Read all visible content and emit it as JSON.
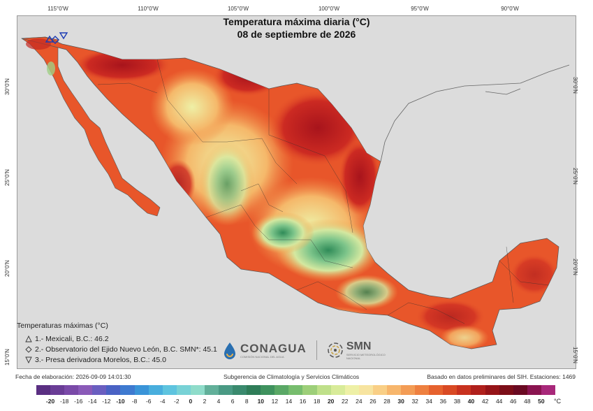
{
  "map": {
    "title": "Temperatura máxima diaria (°C)",
    "subtitle": "08 de septiembre de 2026",
    "lon_labels": [
      "115°0'W",
      "110°0'W",
      "105°0'W",
      "100°0'W",
      "95°0'W",
      "90°0'W"
    ],
    "lat_labels": [
      "30°0'N",
      "25°0'N",
      "20°0'N",
      "15°0'N"
    ],
    "colors": {
      "land_base": "#e8562a",
      "hot": "#b8141c",
      "mild": "#f5a24a",
      "cool": "#d4e8a0",
      "cooler": "#7cc48a",
      "coolest": "#2f8b58",
      "background": "#dcdcdc",
      "water": "#dcdcdc"
    }
  },
  "legend": {
    "title": "Temperaturas máximas (°C)",
    "items": [
      {
        "marker": "triangle-up",
        "text": "1.- Mexicali, B.C.: 46.2"
      },
      {
        "marker": "diamond",
        "text": "2.- Observatorio del Ejido Nuevo León, B.C. SMN*: 45.1"
      },
      {
        "marker": "triangle-down",
        "text": "3.- Presa derivadora Morelos, B.C.: 45.0"
      }
    ]
  },
  "logos": {
    "conagua": "CONAGUA",
    "conagua_sub": "COMISIÓN NACIONAL DEL AGUA",
    "smn": "SMN",
    "smn_sub": "SERVICIO METEOROLÓGICO NACIONAL"
  },
  "footer": {
    "left": "Fecha de elaboración: 2026-09-09 14:01:30",
    "center": "Subgerencia de Climatología y Servicios Climáticos",
    "right": "Basado en datos preliminares del SIH. Estaciones: 1469"
  },
  "colorbar": {
    "unit": "°C",
    "ticks": [
      -20,
      -18,
      -16,
      -14,
      -12,
      -10,
      -8,
      -6,
      -4,
      -2,
      0,
      2,
      4,
      6,
      8,
      10,
      12,
      14,
      16,
      18,
      20,
      22,
      24,
      26,
      28,
      30,
      32,
      34,
      36,
      38,
      40,
      42,
      44,
      46,
      48,
      50
    ],
    "major_ticks": [
      -20,
      -10,
      0,
      10,
      20,
      30,
      40,
      50
    ],
    "colors": [
      "#5a2f82",
      "#6a3d96",
      "#7a4aa8",
      "#8a5ab8",
      "#6a5ec0",
      "#4a62c4",
      "#3e7ad0",
      "#3a94d8",
      "#49aedd",
      "#5ec4df",
      "#78d2d6",
      "#8fdcca",
      "#62b09a",
      "#4a9a84",
      "#3a8a6e",
      "#2f7d58",
      "#3f925e",
      "#5aa866",
      "#77bd6e",
      "#9dcf79",
      "#bfe08a",
      "#d8eb99",
      "#eef0a6",
      "#f7e4a0",
      "#f9cf86",
      "#f7b66c",
      "#f39c55",
      "#ee8040",
      "#e6622e",
      "#d94a24",
      "#c8321f",
      "#b0201c",
      "#961418",
      "#7c0e18",
      "#6a0a22",
      "#8a1450",
      "#a8287a"
    ]
  }
}
